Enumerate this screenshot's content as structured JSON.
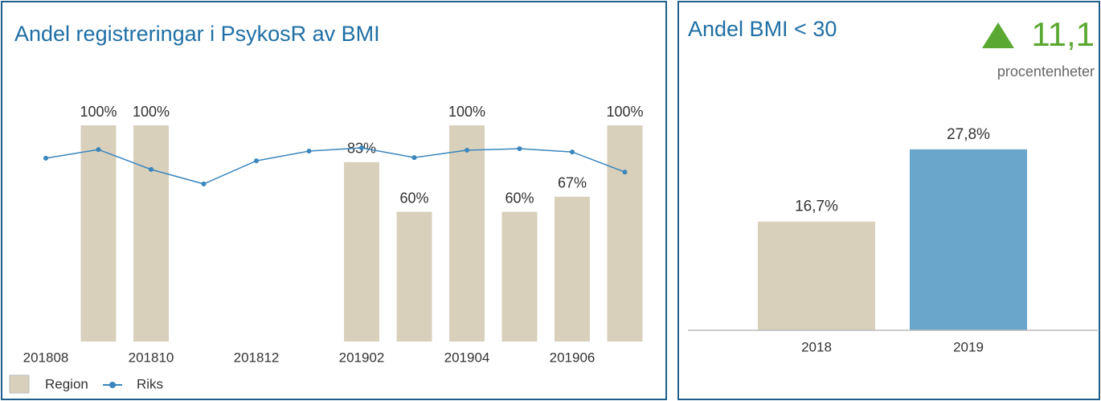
{
  "chart_data": [
    {
      "type": "combo",
      "title": "Andel registreringar i PsykosR av BMI",
      "categories": [
        "201808",
        null,
        "201810",
        null,
        "201812",
        null,
        "201902",
        null,
        "201904",
        null,
        "201906",
        null
      ],
      "ylim": [
        0,
        100
      ],
      "series": [
        {
          "name": "Region",
          "kind": "bar",
          "color": "#d9d0bc",
          "values": [
            null,
            100,
            100,
            null,
            null,
            null,
            83,
            60,
            100,
            60,
            67,
            100
          ],
          "value_labels": [
            null,
            "100%",
            "100%",
            null,
            null,
            null,
            "83%",
            "60%",
            "100%",
            "60%",
            "67%",
            "100%"
          ]
        },
        {
          "name": "Riks",
          "kind": "line",
          "color": "#3a86bd",
          "values": [
            84.8,
            88.8,
            79.6,
            72.9,
            83.6,
            88.1,
            89.6,
            85.1,
            88.5,
            89.2,
            87.7,
            78.4
          ]
        }
      ],
      "legend": "bottom-left"
    },
    {
      "type": "bar",
      "title": "Andel BMI < 30",
      "delta": {
        "value": 11.1,
        "label": "11,1"
      },
      "delta_unit": "procentenheter",
      "delta_color": "#5aa832",
      "categories": [
        "2018",
        "2019"
      ],
      "values": [
        16.7,
        27.8
      ],
      "value_labels": [
        "16,7%",
        "27,8%"
      ],
      "colors": [
        "#d9d0bc",
        "#6aa6cc"
      ],
      "ylim": [
        0,
        30
      ]
    }
  ]
}
